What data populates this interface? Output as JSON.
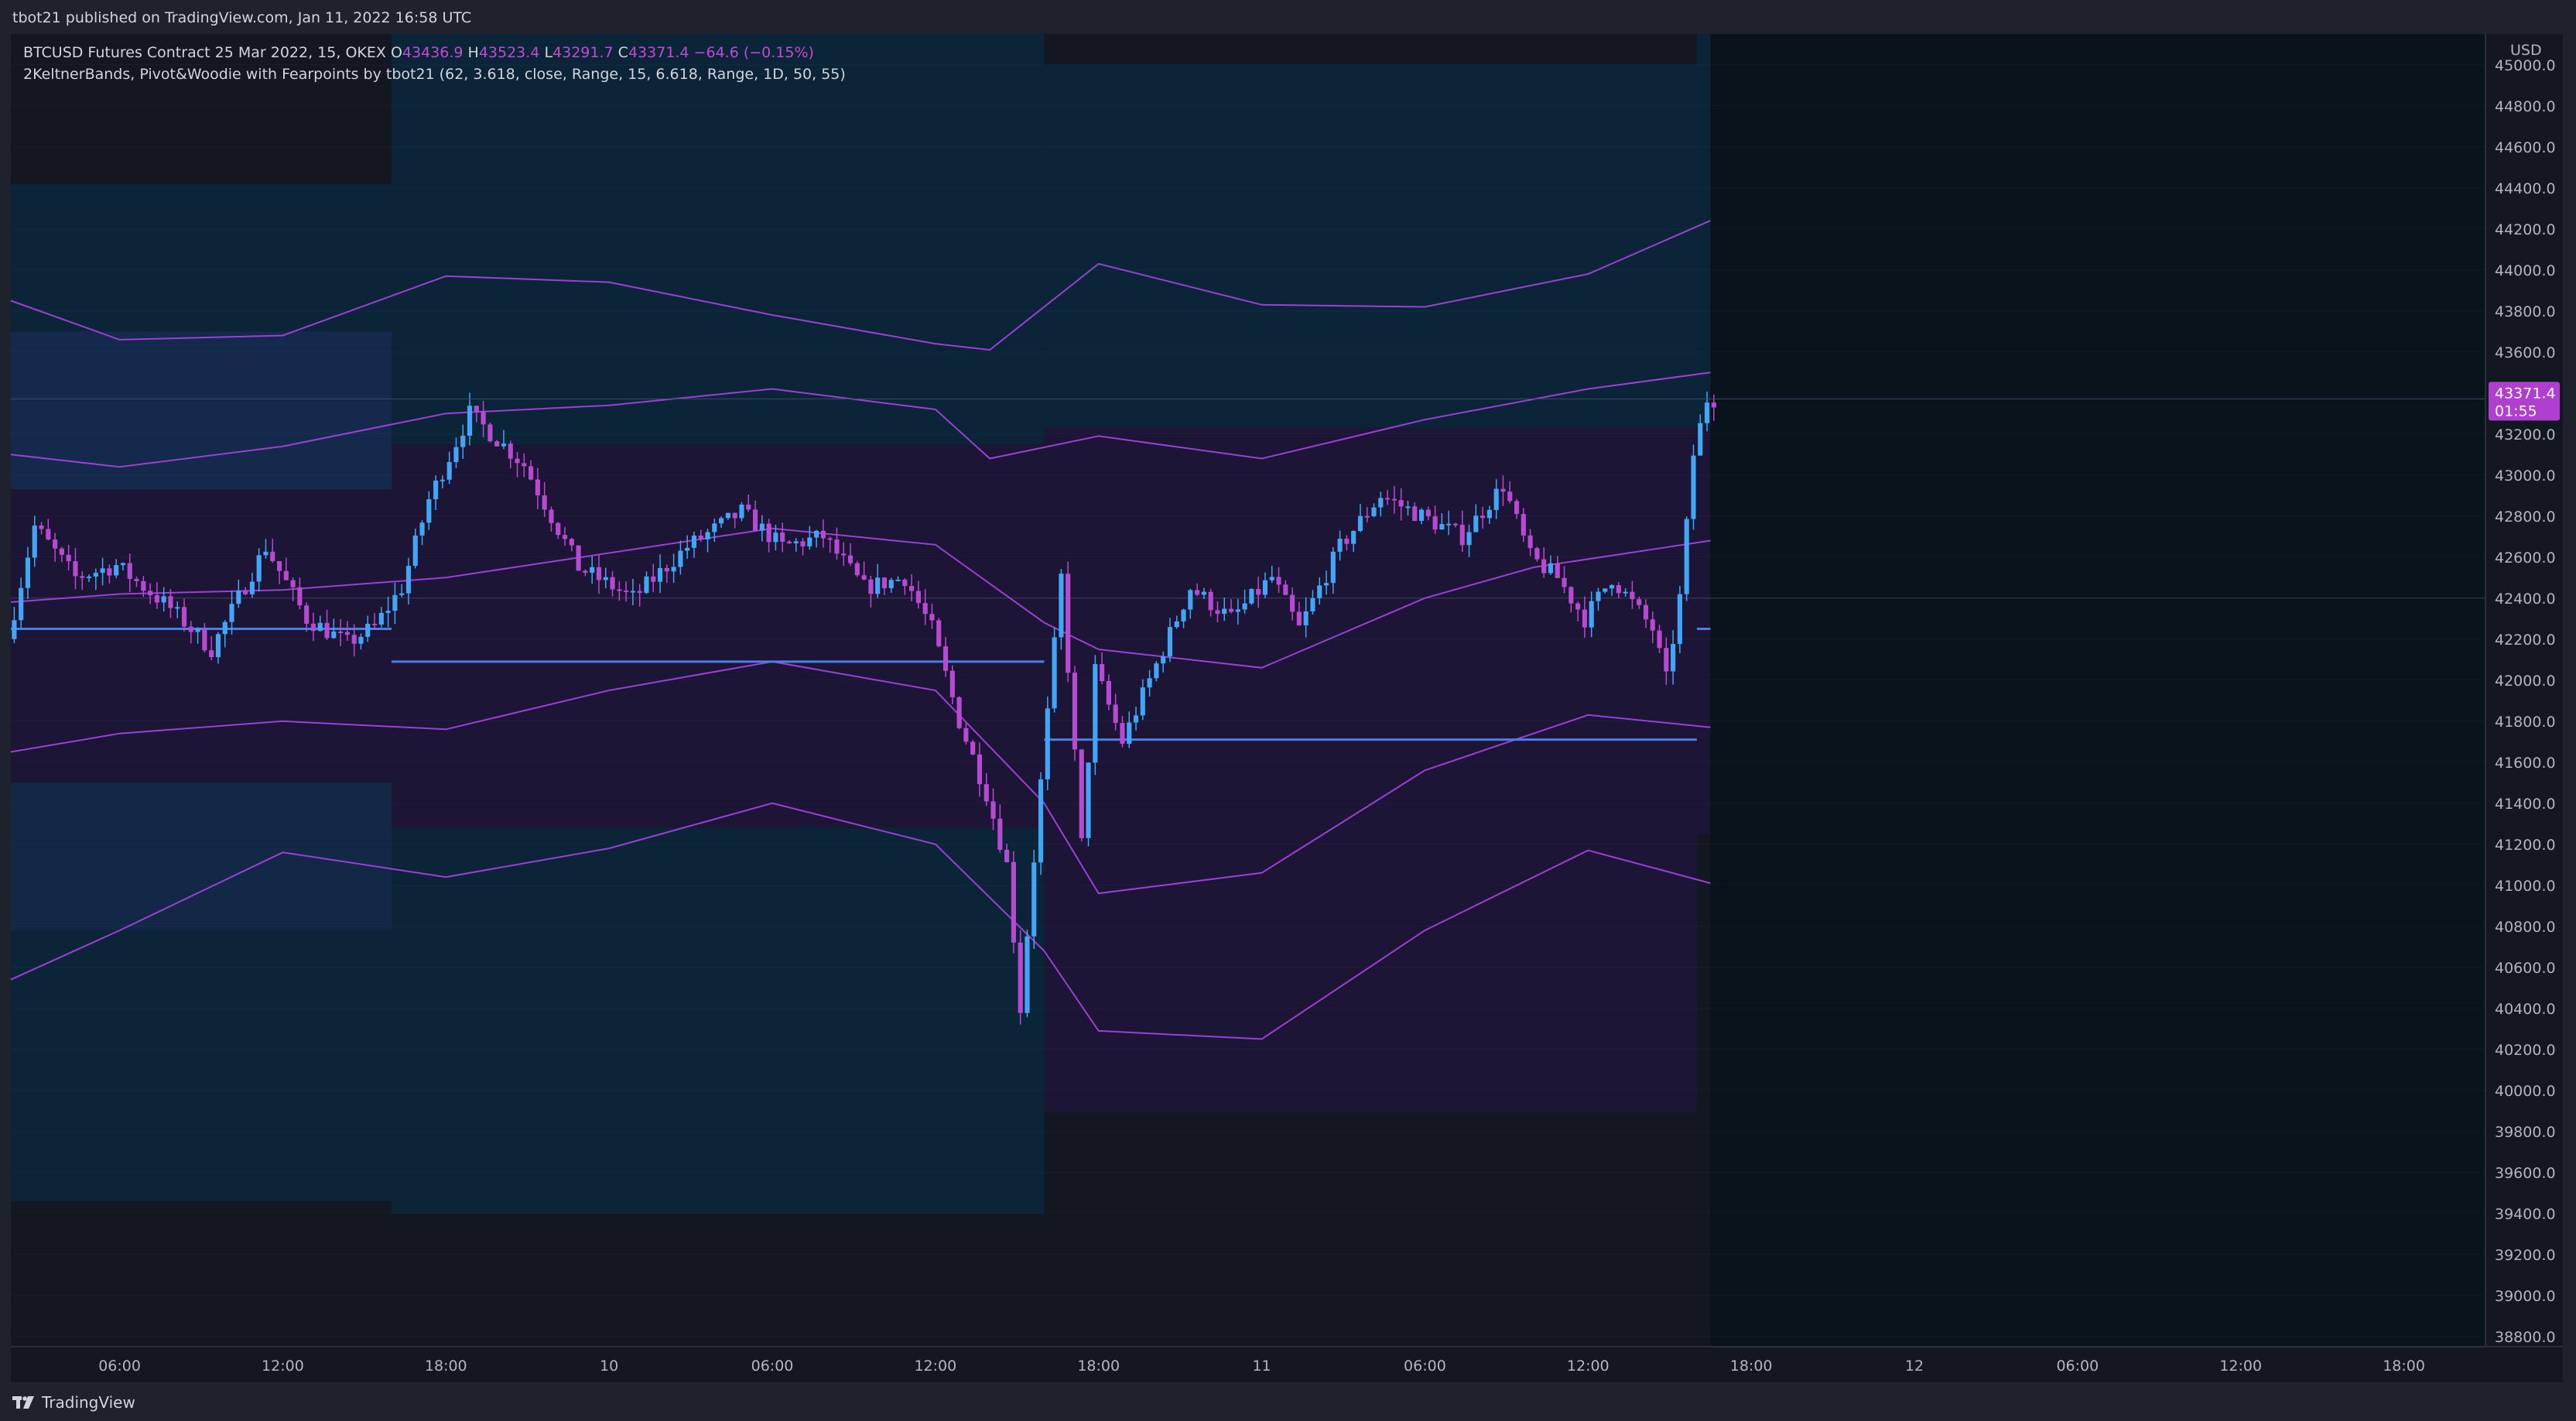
{
  "header": {
    "published_text": "tbot21 published on TradingView.com, Jan 11, 2022 16:58 UTC"
  },
  "footer": {
    "brand": "TradingView"
  },
  "legend": {
    "symbol_line_prefix": "BTCUSD Futures Contract 25 Mar 2022, 15, OKEX",
    "o_label": "O",
    "o_value": "43436.9",
    "h_label": "H",
    "h_value": "43523.4",
    "l_label": "L",
    "l_value": "43291.7",
    "c_label": "C",
    "c_value": "43371.4",
    "change": "−64.6 (−0.15%)",
    "indicator_line": "2KeltnerBands, Pivot&Woodie with Fearpoints by tbot21 (62, 3.618, close, Range, 15, 6.618, Range, 1D, 50, 55)"
  },
  "price_axis": {
    "currency": "USD",
    "current_price_label": "43371.4",
    "countdown_label": "01:55",
    "ticks": [
      "45000.0",
      "44800.0",
      "44600.0",
      "44400.0",
      "44200.0",
      "44000.0",
      "43800.0",
      "43600.0",
      "43200.0",
      "43000.0",
      "42800.0",
      "42600.0",
      "42400.0",
      "42200.0",
      "42000.0",
      "41800.0",
      "41600.0",
      "41400.0",
      "41200.0",
      "41000.0",
      "40800.0",
      "40600.0",
      "40400.0",
      "40200.0",
      "40000.0",
      "39800.0",
      "39600.0",
      "39400.0",
      "39200.0",
      "39000.0",
      "38800.0"
    ]
  },
  "time_axis": {
    "ticks": [
      "06:00",
      "12:00",
      "18:00",
      "10",
      "06:00",
      "12:00",
      "18:00",
      "11",
      "06:00",
      "12:00",
      "18:00",
      "12",
      "06:00",
      "12:00",
      "18:00"
    ]
  },
  "colors": {
    "background": "#131722",
    "bull_candle": "#42a5f5",
    "bear_candle": "#b84ad1",
    "keltner_line": "#9c3fd6",
    "pivot_line": "#4c7ee8",
    "current_price_badge": "#b03fd0"
  },
  "chart_data": {
    "type": "candlestick",
    "symbol": "BTCUSD Futures Contract 25 Mar 2022",
    "interval": "15",
    "exchange": "OKEX",
    "y_range": [
      38750,
      45150
    ],
    "last": {
      "open": 43436.9,
      "high": 43523.4,
      "low": 43291.7,
      "close": 43371.4
    },
    "time_range": [
      "2022-01-09T02:00",
      "2022-01-12T21:00"
    ],
    "segment_boundaries": [
      "2022-01-09T16:00",
      "2022-01-10T16:00",
      "2022-01-11T16:00"
    ],
    "pivot_levels": [
      {
        "start": "2022-01-09T02:00",
        "end": "2022-01-09T16:00",
        "value": 42250
      },
      {
        "start": "2022-01-09T16:00",
        "end": "2022-01-10T16:00",
        "value": 42090
      },
      {
        "start": "2022-01-10T16:00",
        "end": "2022-01-11T16:00",
        "value": 41710
      },
      {
        "start": "2022-01-11T16:00",
        "end": "2022-01-11T16:30",
        "value": 42250
      }
    ],
    "zones": [
      {
        "start": "2022-01-09T02:00",
        "end": "2022-01-09T16:00",
        "levels": [
          44420,
          43700,
          42930,
          41500,
          40780,
          40060,
          39460
        ]
      },
      {
        "start": "2022-01-09T16:00",
        "end": "2022-01-10T16:00",
        "levels": [
          45150,
          43150,
          41280,
          39400
        ]
      },
      {
        "start": "2022-01-10T16:00",
        "end": "2022-01-11T16:00",
        "levels": [
          45000,
          43230,
          39890
        ]
      },
      {
        "start": "2022-01-11T16:00",
        "end": "2022-01-11T16:30",
        "levels": [
          45150,
          43240,
          41250
        ]
      }
    ],
    "keltner_bands": [
      {
        "name": "outer_upper",
        "x": [
          "2022-01-09T02:00",
          "2022-01-09T06:00",
          "2022-01-09T12:00",
          "2022-01-09T18:00",
          "2022-01-10T00:00",
          "2022-01-10T06:00",
          "2022-01-10T12:00",
          "2022-01-10T14:00",
          "2022-01-10T18:00",
          "2022-01-11T00:00",
          "2022-01-11T06:00",
          "2022-01-11T12:00",
          "2022-01-11T16:30"
        ],
        "values": [
          43850,
          43660,
          43680,
          43970,
          43940,
          43780,
          43640,
          43610,
          44030,
          43830,
          43820,
          43980,
          44240
        ]
      },
      {
        "name": "inner_upper",
        "x": [
          "2022-01-09T02:00",
          "2022-01-09T06:00",
          "2022-01-09T12:00",
          "2022-01-09T18:00",
          "2022-01-10T00:00",
          "2022-01-10T06:00",
          "2022-01-10T12:00",
          "2022-01-10T14:00",
          "2022-01-10T18:00",
          "2022-01-11T00:00",
          "2022-01-11T06:00",
          "2022-01-11T12:00",
          "2022-01-11T16:30"
        ],
        "values": [
          43100,
          43040,
          43140,
          43300,
          43340,
          43420,
          43320,
          43080,
          43190,
          43080,
          43270,
          43420,
          43500
        ]
      },
      {
        "name": "middle",
        "x": [
          "2022-01-09T02:00",
          "2022-01-09T06:00",
          "2022-01-09T12:00",
          "2022-01-09T18:00",
          "2022-01-10T00:00",
          "2022-01-10T06:00",
          "2022-01-10T12:00",
          "2022-01-10T16:00",
          "2022-01-10T18:00",
          "2022-01-11T00:00",
          "2022-01-11T06:00",
          "2022-01-11T10:00",
          "2022-01-11T16:30"
        ],
        "values": [
          42380,
          42420,
          42440,
          42500,
          42620,
          42740,
          42660,
          42280,
          42150,
          42060,
          42400,
          42550,
          42680
        ]
      },
      {
        "name": "inner_lower",
        "x": [
          "2022-01-09T02:00",
          "2022-01-09T06:00",
          "2022-01-09T12:00",
          "2022-01-09T18:00",
          "2022-01-10T00:00",
          "2022-01-10T06:00",
          "2022-01-10T12:00",
          "2022-01-10T16:00",
          "2022-01-10T18:00",
          "2022-01-11T00:00",
          "2022-01-11T06:00",
          "2022-01-11T12:00",
          "2022-01-11T16:30"
        ],
        "values": [
          41650,
          41740,
          41800,
          41760,
          41950,
          42090,
          41950,
          41400,
          40960,
          41060,
          41560,
          41830,
          41770
        ]
      },
      {
        "name": "outer_lower",
        "x": [
          "2022-01-09T02:00",
          "2022-01-09T06:00",
          "2022-01-09T12:00",
          "2022-01-09T18:00",
          "2022-01-10T00:00",
          "2022-01-10T06:00",
          "2022-01-10T12:00",
          "2022-01-10T16:00",
          "2022-01-10T18:00",
          "2022-01-11T00:00",
          "2022-01-11T06:00",
          "2022-01-11T12:00",
          "2022-01-11T16:30"
        ],
        "values": [
          40540,
          40780,
          41160,
          41040,
          41180,
          41400,
          41200,
          40680,
          40290,
          40250,
          40780,
          41170,
          41010
        ]
      }
    ],
    "price_path": [
      [
        "2022-01-09T02:00",
        42200
      ],
      [
        "2022-01-09T03:00",
        42750
      ],
      [
        "2022-01-09T04:30",
        42500
      ],
      [
        "2022-01-09T06:00",
        42560
      ],
      [
        "2022-01-09T08:00",
        42350
      ],
      [
        "2022-01-09T09:30",
        42150
      ],
      [
        "2022-01-09T11:30",
        42650
      ],
      [
        "2022-01-09T13:00",
        42300
      ],
      [
        "2022-01-09T14:30",
        42180
      ],
      [
        "2022-01-09T15:30",
        42260
      ],
      [
        "2022-01-09T16:30",
        42450
      ],
      [
        "2022-01-09T17:30",
        42880
      ],
      [
        "2022-01-09T19:00",
        43300
      ],
      [
        "2022-01-09T21:00",
        43050
      ],
      [
        "2022-01-09T23:00",
        42550
      ],
      [
        "2022-01-10T01:00",
        42400
      ],
      [
        "2022-01-10T03:00",
        42650
      ],
      [
        "2022-01-10T05:00",
        42820
      ],
      [
        "2022-01-10T06:30",
        42650
      ],
      [
        "2022-01-10T08:00",
        42700
      ],
      [
        "2022-01-10T09:30",
        42450
      ],
      [
        "2022-01-10T11:00",
        42500
      ],
      [
        "2022-01-10T12:00",
        42250
      ],
      [
        "2022-01-10T13:00",
        41800
      ],
      [
        "2022-01-10T14:00",
        41450
      ],
      [
        "2022-01-10T14:45",
        41100
      ],
      [
        "2022-01-10T15:15",
        40400
      ],
      [
        "2022-01-10T16:00",
        41500
      ],
      [
        "2022-01-10T16:45",
        42500
      ],
      [
        "2022-01-10T17:30",
        41200
      ],
      [
        "2022-01-10T18:00",
        42050
      ],
      [
        "2022-01-10T19:00",
        41700
      ],
      [
        "2022-01-10T20:00",
        42000
      ],
      [
        "2022-01-10T21:30",
        42450
      ],
      [
        "2022-01-10T23:00",
        42300
      ],
      [
        "2022-01-11T00:30",
        42500
      ],
      [
        "2022-01-11T01:30",
        42250
      ],
      [
        "2022-01-11T03:00",
        42650
      ],
      [
        "2022-01-11T04:30",
        42900
      ],
      [
        "2022-01-11T06:00",
        42800
      ],
      [
        "2022-01-11T07:30",
        42700
      ],
      [
        "2022-01-11T09:00",
        42950
      ],
      [
        "2022-01-11T10:00",
        42600
      ],
      [
        "2022-01-11T11:00",
        42500
      ],
      [
        "2022-01-11T12:00",
        42300
      ],
      [
        "2022-01-11T13:00",
        42500
      ],
      [
        "2022-01-11T14:30",
        42250
      ],
      [
        "2022-01-11T15:00",
        42000
      ],
      [
        "2022-01-11T15:30",
        42400
      ],
      [
        "2022-01-11T16:00",
        43100
      ],
      [
        "2022-01-11T16:30",
        43371.4
      ]
    ]
  }
}
